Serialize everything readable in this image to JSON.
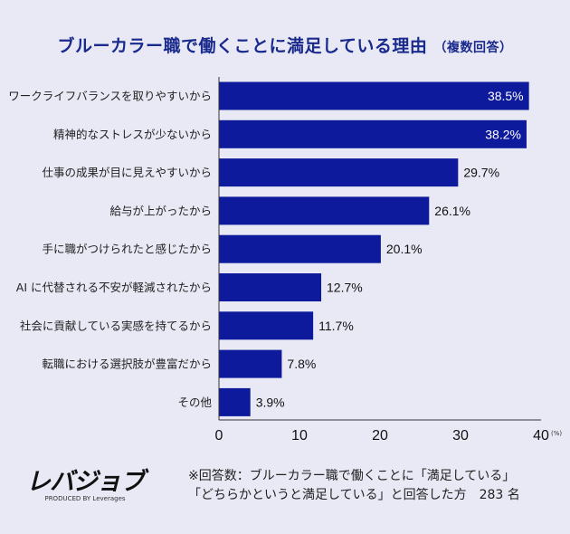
{
  "chart_data": {
    "type": "bar",
    "orientation": "horizontal",
    "title": "ブルーカラー職で働くことに満足している理由",
    "subtitle": "（複数回答）",
    "categories": [
      "ワークライフバランスを取りやすいから",
      "精神的なストレスが少ないから",
      "仕事の成果が目に見えやすいから",
      "給与が上がったから",
      "手に職がつけられたと感じたから",
      "AI に代替される不安が軽減されたから",
      "社会に貢献している実感を持てるから",
      "転職における選択肢が豊富だから",
      "その他"
    ],
    "values": [
      38.5,
      38.2,
      29.7,
      26.1,
      20.1,
      12.7,
      11.7,
      7.8,
      3.9
    ],
    "data_labels": [
      "38.5%",
      "38.2%",
      "29.7%",
      "26.1%",
      "20.1%",
      "12.7%",
      "11.7%",
      "7.8%",
      "3.9%"
    ],
    "xlim": [
      0,
      40
    ],
    "xticks": [
      "0",
      "10",
      "20",
      "30",
      "40"
    ],
    "xunit": "(%)",
    "grid": false,
    "bar_color": "#0d1a9c",
    "background": "#e8e9f5"
  },
  "footer": {
    "logo": "レバジョブ",
    "logo_byline": "PRODUCED BY Leverages",
    "note_line1": "※回答数：ブルーカラー職で働くことに「満足している」",
    "note_line2": "「どちらかというと満足している」と回答した方　283 名"
  }
}
